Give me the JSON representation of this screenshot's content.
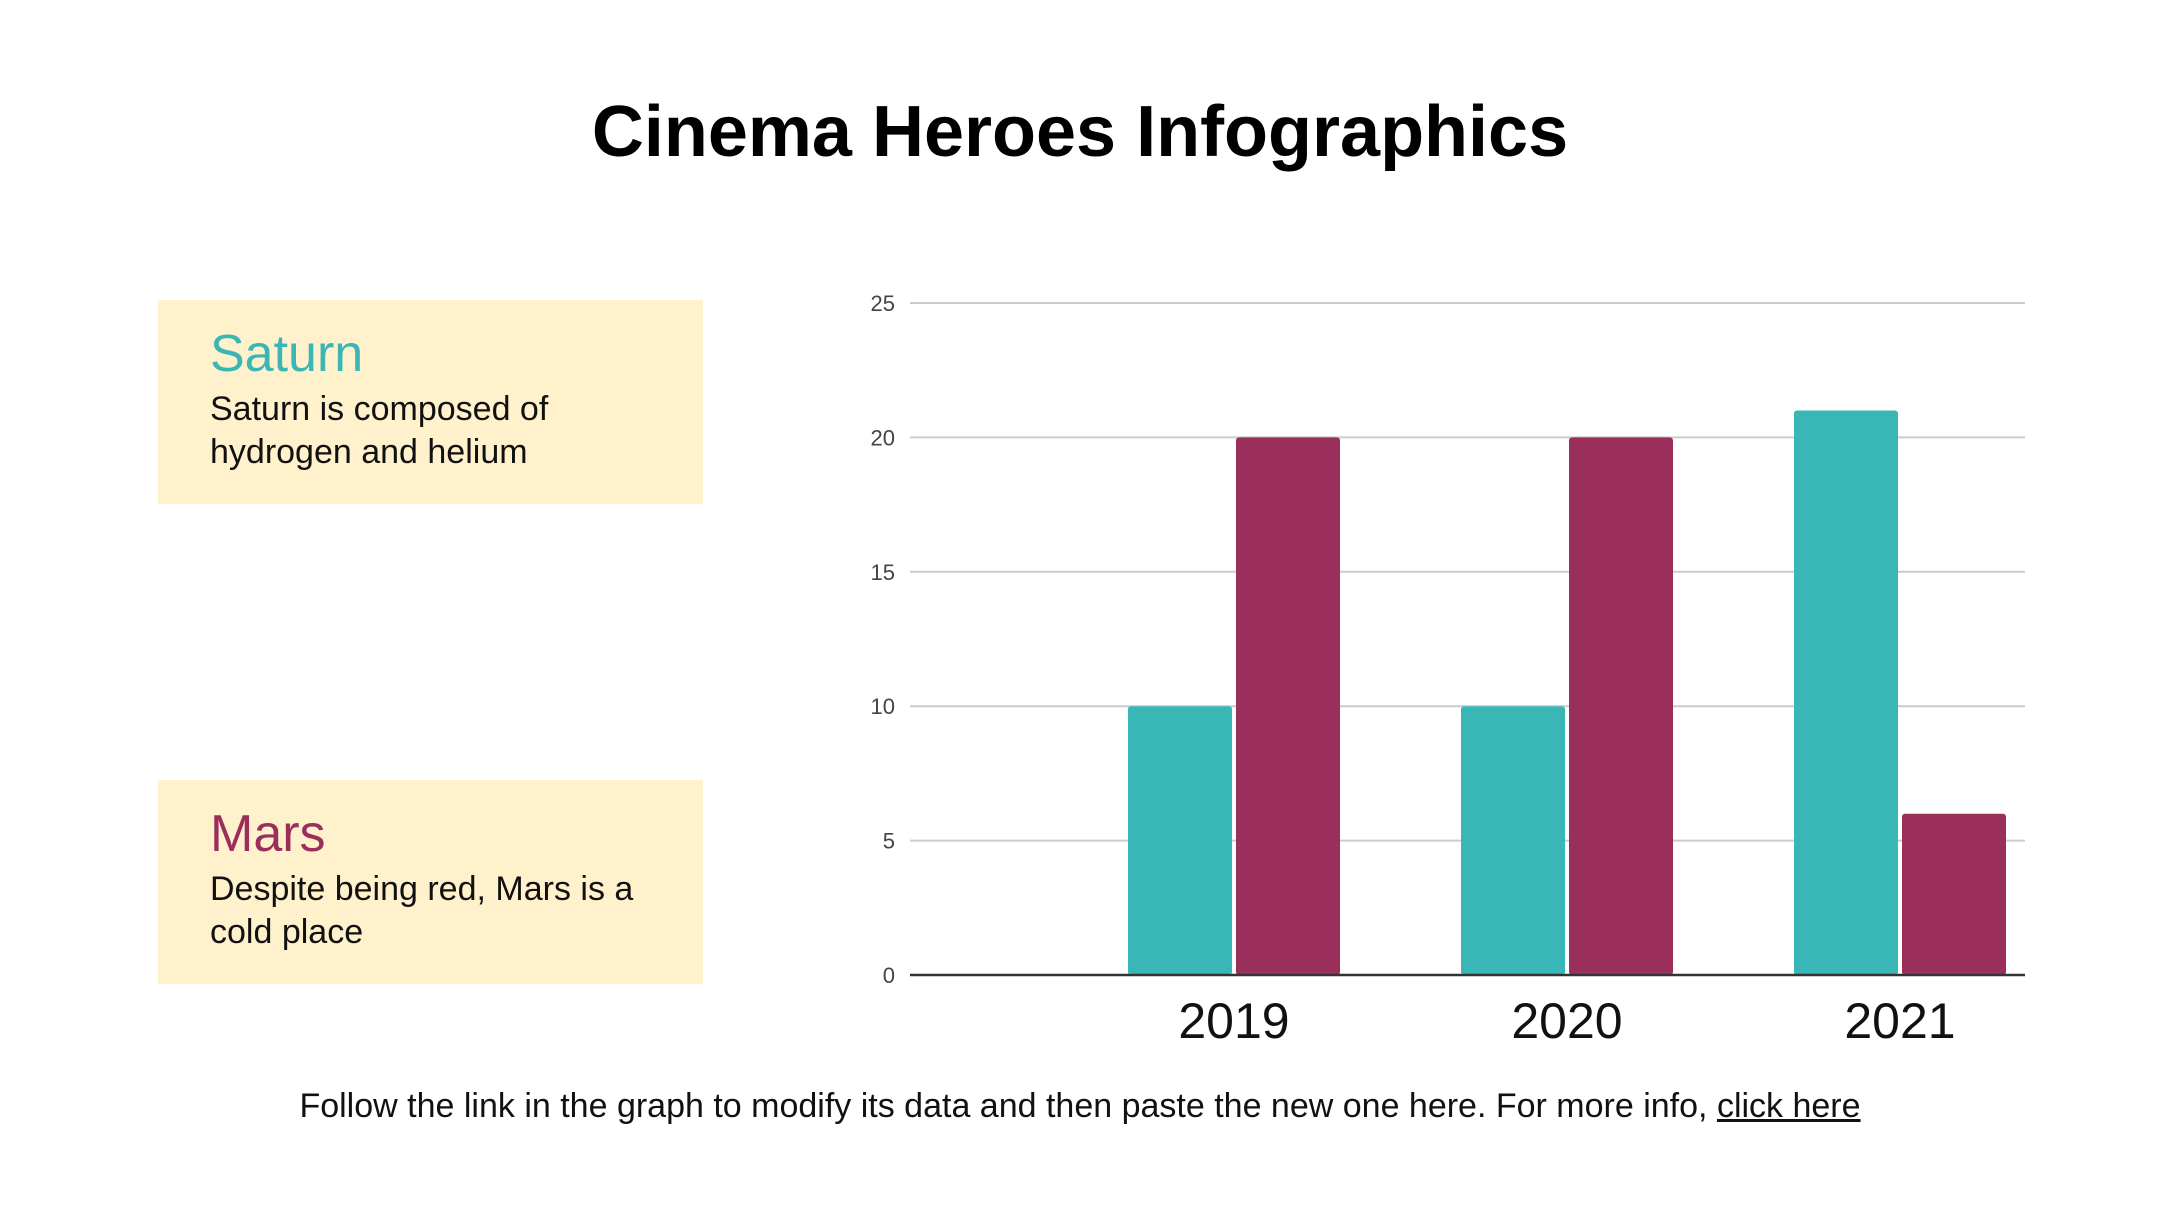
{
  "slide": {
    "title": "Cinema Heroes Infographics",
    "footer_text": "Follow the link in the graph to modify its data and then paste the new one here. For more info,",
    "footer_link": "click here"
  },
  "cards": [
    {
      "title": "Saturn",
      "text": "Saturn is composed of hydrogen and helium",
      "color": "#3ab7b5"
    },
    {
      "title": "Mars",
      "text": "Despite being red, Mars is a cold place",
      "color": "#9b2f5c"
    }
  ],
  "colors": {
    "card_bg": "#fff1cc",
    "teal": "#38b7b6",
    "maroon": "#9b2f5c"
  },
  "chart_data": {
    "type": "bar",
    "categories": [
      "2019",
      "2020",
      "2021"
    ],
    "series": [
      {
        "name": "Saturn",
        "values": [
          10,
          10,
          21
        ],
        "color": "#38b7b6"
      },
      {
        "name": "Mars",
        "values": [
          20,
          20,
          6
        ],
        "color": "#9b2f5c"
      }
    ],
    "yticks": [
      "0",
      "5",
      "10",
      "15",
      "20",
      "25"
    ],
    "ylim": [
      0,
      25
    ],
    "grid": true,
    "title": "",
    "xlabel": "",
    "ylabel": ""
  }
}
